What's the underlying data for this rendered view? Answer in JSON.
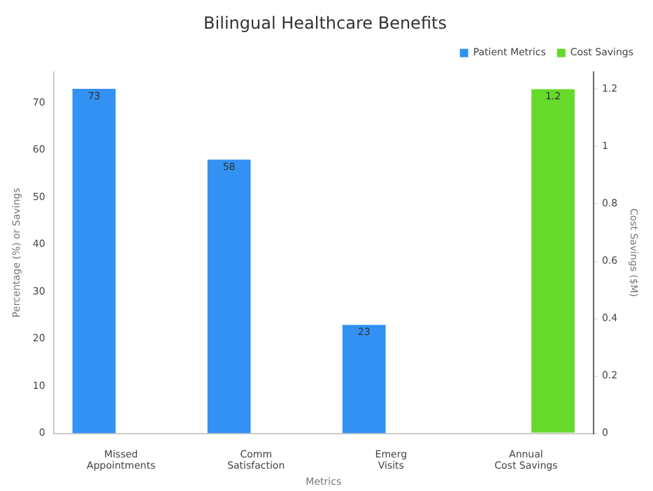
{
  "chart_data": {
    "type": "bar",
    "title": "Bilingual Healthcare Benefits",
    "xlabel": "Metrics",
    "ylabel": "Percentage (%) or Savings",
    "y2label": "Cost Savings ($M)",
    "categories": [
      "Missed\nAppointments",
      "Comm\nSatisfaction",
      "Emerg\nVisits",
      "Annual\nCost Savings"
    ],
    "series": [
      {
        "name": "Patient Metrics",
        "color": "#3291f2",
        "values": [
          73,
          58,
          23,
          null
        ]
      },
      {
        "name": "Cost Savings",
        "color": "#66d92a",
        "values": [
          null,
          null,
          null,
          1.2
        ],
        "axis": "y2"
      }
    ],
    "ylim": [
      0,
      76.6
    ],
    "yticks": [
      0,
      10,
      20,
      30,
      40,
      50,
      60,
      70
    ],
    "y2lim": [
      0,
      1.26
    ],
    "y2ticks": [
      0,
      0.2,
      0.4,
      0.6,
      0.8,
      1,
      1.2
    ],
    "data_labels": true,
    "legend": "top right",
    "grid": false
  }
}
